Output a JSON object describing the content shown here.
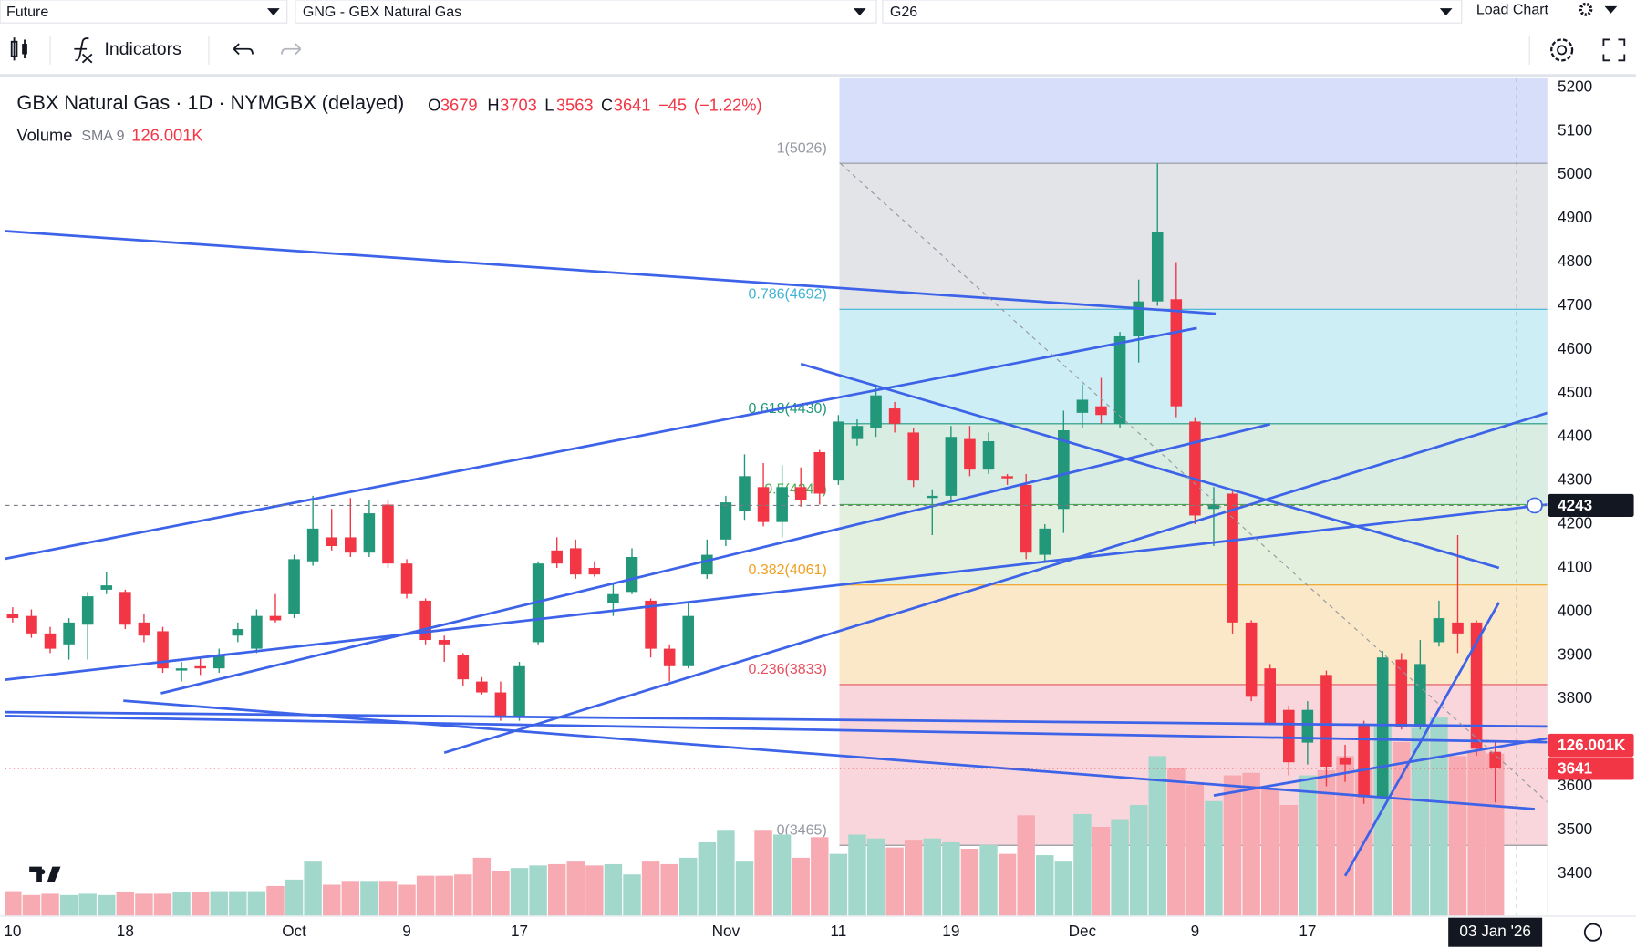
{
  "toolbar": {
    "dropdowns": [
      "Future",
      "GNG - GBX Natural Gas",
      "G26"
    ],
    "load_chart": "Load Chart",
    "indicators": "Indicators"
  },
  "chart_data": {
    "type": "candlestick",
    "title": "GBX Natural Gas · 1D · NYMGBX (delayed)",
    "ohlc_letters": [
      "O",
      "H",
      "L",
      "C"
    ],
    "change": {
      "value": -45,
      "label": "−45"
    },
    "change_pct": {
      "value": -1.22,
      "label": "(−1.22%)"
    },
    "volume_title": "Volume",
    "volume_sma": "SMA 9",
    "volume_label": "126.001K",
    "categories": [
      "10",
      null,
      null,
      null,
      null,
      null,
      "18",
      null,
      null,
      null,
      null,
      null,
      null,
      null,
      null,
      "Oct",
      null,
      null,
      null,
      null,
      null,
      "9",
      null,
      null,
      null,
      null,
      null,
      "17",
      null,
      null,
      null,
      null,
      null,
      null,
      null,
      null,
      null,
      null,
      "Nov",
      null,
      null,
      null,
      null,
      null,
      "11",
      null,
      null,
      null,
      null,
      null,
      "19",
      null,
      null,
      null,
      null,
      null,
      null,
      "Dec",
      null,
      null,
      null,
      null,
      null,
      "9",
      null,
      null,
      null,
      null,
      null,
      "17",
      null,
      null,
      null,
      null,
      null,
      null,
      null,
      null,
      null,
      "03 Jan '26"
    ],
    "open": [
      3995,
      3990,
      3950,
      3925,
      3970,
      4050,
      4045,
      3975,
      3955,
      3865,
      3875,
      3870,
      3945,
      3915,
      3990,
      3995,
      4115,
      4170,
      4170,
      4135,
      4245,
      4110,
      4025,
      3935,
      3900,
      3840,
      3815,
      3760,
      3930,
      4140,
      4145,
      4100,
      4020,
      4045,
      4025,
      3915,
      3875,
      4085,
      4165,
      4230,
      4285,
      4205,
      4285,
      4365,
      4300,
      4395,
      4420,
      4465,
      4410,
      4260,
      4265,
      4395,
      4325,
      4310,
      4290,
      4130,
      4235,
      4455,
      4470,
      4430,
      4630,
      4710,
      4715,
      4435,
      4235,
      4270,
      3975,
      3870,
      3775,
      3700,
      3855,
      3665,
      3740,
      3575,
      3890,
      3735,
      3930,
      3975,
      3975,
      3679
    ],
    "high": [
      4010,
      4005,
      3965,
      3985,
      4045,
      4090,
      4050,
      3995,
      3965,
      3885,
      3895,
      3915,
      3975,
      4005,
      4040,
      4130,
      4265,
      4235,
      4260,
      4255,
      4255,
      4120,
      4030,
      3945,
      3905,
      3850,
      3840,
      3885,
      4115,
      4170,
      4165,
      4115,
      4065,
      4145,
      4030,
      3925,
      4020,
      4165,
      4265,
      4360,
      4340,
      4335,
      4330,
      4370,
      4450,
      4440,
      4520,
      4480,
      4420,
      4280,
      4425,
      4425,
      4410,
      4315,
      4315,
      4200,
      4460,
      4520,
      4535,
      4640,
      4760,
      5026,
      4800,
      4445,
      4285,
      4275,
      3980,
      3880,
      3785,
      3795,
      3865,
      3695,
      3750,
      3910,
      3905,
      3935,
      4025,
      4175,
      3980,
      3703
    ],
    "low": [
      3975,
      3940,
      3905,
      3890,
      3890,
      4040,
      3960,
      3930,
      3860,
      3840,
      3855,
      3860,
      3930,
      3905,
      3975,
      3985,
      4105,
      4140,
      4125,
      4125,
      4100,
      4030,
      3925,
      3885,
      3830,
      3810,
      3750,
      3750,
      3925,
      4100,
      4075,
      4080,
      3990,
      4040,
      3895,
      3840,
      3870,
      4075,
      4150,
      4210,
      4195,
      4170,
      4240,
      4245,
      4290,
      4380,
      4400,
      4410,
      4285,
      4175,
      4255,
      4310,
      4315,
      4290,
      4120,
      4115,
      4180,
      4420,
      4430,
      4420,
      4570,
      4700,
      4445,
      4200,
      4150,
      3950,
      3795,
      3740,
      3625,
      3650,
      3600,
      3610,
      3560,
      3570,
      3730,
      3730,
      3920,
      3905,
      3670,
      3563
    ],
    "close": [
      3985,
      3950,
      3915,
      3975,
      4035,
      4060,
      3970,
      3945,
      3870,
      3870,
      3870,
      3900,
      3960,
      3990,
      3980,
      4120,
      4190,
      4150,
      4135,
      4225,
      4110,
      4040,
      3935,
      3925,
      3845,
      3815,
      3760,
      3875,
      4110,
      4110,
      4085,
      4085,
      4040,
      4125,
      3915,
      3875,
      3990,
      4130,
      4250,
      4310,
      4205,
      4285,
      4255,
      4270,
      4435,
      4425,
      4495,
      4430,
      4300,
      4265,
      4400,
      4325,
      4390,
      4305,
      4135,
      4190,
      4415,
      4485,
      4450,
      4630,
      4710,
      4870,
      4470,
      4220,
      4245,
      3975,
      3805,
      3745,
      3655,
      3775,
      3645,
      3650,
      3575,
      3895,
      3735,
      3880,
      3985,
      3950,
      3686,
      3641
    ],
    "volume": [
      19000,
      16000,
      17000,
      16000,
      17000,
      16000,
      18000,
      17000,
      17000,
      18000,
      18000,
      19000,
      19000,
      19000,
      23000,
      28000,
      42000,
      24000,
      27000,
      27000,
      27000,
      24000,
      31000,
      31000,
      32000,
      45000,
      35000,
      37000,
      39000,
      40000,
      42000,
      39000,
      40000,
      32000,
      42000,
      40000,
      45000,
      57000,
      66000,
      42000,
      66000,
      63000,
      45000,
      61000,
      48000,
      63000,
      60000,
      53000,
      59000,
      60000,
      57000,
      52000,
      55000,
      48000,
      78000,
      47000,
      42000,
      79000,
      69000,
      75000,
      86000,
      124000,
      115000,
      102000,
      89000,
      109000,
      111000,
      99000,
      86000,
      109000,
      113000,
      124000,
      113000,
      149000,
      135000,
      146000,
      154000,
      124000,
      128000,
      126001
    ],
    "up_color": "#22977a",
    "down_color": "#f23645",
    "volume_up_color": "#a2d8cb",
    "volume_down_color": "#f7aab1",
    "ylim": [
      3304,
      5221
    ],
    "yticks": [
      5200,
      5100,
      5000,
      4900,
      4800,
      4700,
      4600,
      4500,
      4400,
      4300,
      4200,
      4100,
      4000,
      3900,
      3800,
      3700,
      3600,
      3500,
      3400
    ],
    "crosshair_price": 4243,
    "fib": {
      "start": 44,
      "top_fill": "#d6defa",
      "levels": [
        {
          "value": 5026,
          "label": "1(5026)",
          "color": "#9598a1",
          "fill": "#e3e4e8"
        },
        {
          "value": 4692,
          "label": "0.786(4692)",
          "color": "#3fb3d3",
          "fill": "#cdeef4"
        },
        {
          "value": 4430,
          "label": "0.618(4430)",
          "color": "#22977a",
          "fill": "#d9ede3"
        },
        {
          "value": 4245,
          "label": "0.5(4245)",
          "color": "#4caf50",
          "fill": "#e3f0dd"
        },
        {
          "value": 4061,
          "label": "0.382(4061)",
          "color": "#f0a020",
          "fill": "#fbe8c9"
        },
        {
          "value": 3833,
          "label": "0.236(3833)",
          "color": "#e5505f",
          "fill": "#f9d6db"
        },
        {
          "value": 3465,
          "label": "0(3465)",
          "color": "#9598a1",
          "fill": null
        }
      ]
    },
    "trendlines": [
      {
        "x": [
          -0.4,
          64.1
        ],
        "y": [
          4871,
          4682
        ],
        "color": "#3d63e8"
      },
      {
        "x": [
          -0.4,
          63.1
        ],
        "y": [
          4121,
          4649
        ],
        "color": "#3d63e8"
      },
      {
        "x": [
          7.9,
          67.0
        ],
        "y": [
          3813,
          4429
        ],
        "color": "#3d63e8"
      },
      {
        "x": [
          42.0,
          79.2
        ],
        "y": [
          4567,
          4100
        ],
        "color": "#3d63e8"
      },
      {
        "x": [
          -0.4,
          81.8
        ],
        "y": [
          3844,
          4245
        ],
        "color": "#3d63e8"
      },
      {
        "x": [
          23.0,
          81.8
        ],
        "y": [
          3677,
          4455
        ],
        "color": "#3d63e8"
      },
      {
        "x": [
          -0.4,
          81.8
        ],
        "y": [
          3770,
          3737
        ],
        "color": "#3d63e8"
      },
      {
        "x": [
          -0.4,
          81.8
        ],
        "y": [
          3761,
          3701
        ],
        "color": "#3d63e8"
      },
      {
        "x": [
          5.9,
          81.1
        ],
        "y": [
          3796,
          3548
        ],
        "color": "#3d63e8"
      },
      {
        "x": [
          64.0,
          81.8
        ],
        "y": [
          3579,
          3710
        ],
        "color": "#3d63e8"
      },
      {
        "x": [
          71.0,
          79.2
        ],
        "y": [
          3395,
          4021
        ],
        "color": "#3d63e8"
      },
      {
        "x": [
          44.1,
          81.8
        ],
        "y": [
          5026,
          3563
        ],
        "color": "#9598a1",
        "dashed": true
      }
    ]
  }
}
